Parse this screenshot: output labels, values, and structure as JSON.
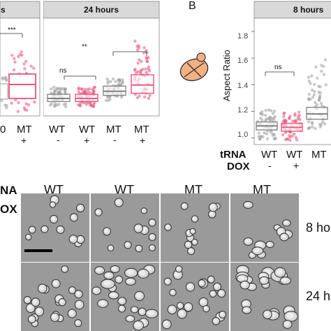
{
  "top_left": {
    "facet_left_strip_fragment": "s",
    "facet_right_strip": "24 hours",
    "sig_left": "***",
    "sig_right_1": "ns",
    "sig_right_2": "**",
    "x_left_row1": [
      "0",
      "MT"
    ],
    "x_left_row2": [
      "",
      "+"
    ],
    "x_right_row1": [
      "WT",
      "WT",
      "MT",
      "MT"
    ],
    "x_right_row2": [
      "-",
      "+",
      "-",
      "+"
    ]
  },
  "panel_b": {
    "letter": "B",
    "strip": "8 hours",
    "ylabel": "Aspect Ratio",
    "yticks": [
      "1.0",
      "1.2",
      "1.4",
      "1.6",
      "1.8"
    ],
    "sig": "ns",
    "row1_label": "tRNA",
    "row2_label": "DOX",
    "x_row1": [
      "WT",
      "WT",
      "MT"
    ],
    "x_row2": [
      "-",
      "+",
      ""
    ]
  },
  "micrographs": {
    "row_label_top_fragment": "NA",
    "row_label_bottom_fragment": "OX",
    "col_headers": [
      "WT",
      "WT",
      "MT",
      "MT"
    ],
    "col_subheaders": [
      "-",
      "+",
      "-",
      "+"
    ],
    "row_labels": [
      "8 ho",
      "24 h"
    ]
  },
  "chart_data": [
    {
      "type": "box",
      "title": "24 hours",
      "categories": [
        "WT -",
        "WT +",
        "MT -",
        "MT +"
      ],
      "median": [
        1.12,
        1.12,
        1.19,
        1.25
      ],
      "q1": [
        1.09,
        1.09,
        1.15,
        1.17
      ],
      "q3": [
        1.16,
        1.16,
        1.24,
        1.35
      ],
      "annotations": [
        "ns",
        "**"
      ],
      "colors": {
        "WT": "#9e9e9e",
        "MT_dox": "#e8547a"
      }
    },
    {
      "type": "box",
      "title": "8 hours",
      "ylabel": "Aspect Ratio",
      "categories": [
        "WT -",
        "WT +",
        "MT -"
      ],
      "median": [
        1.09,
        1.08,
        1.18
      ],
      "q1": [
        1.06,
        1.05,
        1.14
      ],
      "q3": [
        1.12,
        1.11,
        1.23
      ],
      "ylim": [
        0.95,
        1.9
      ],
      "annotations": [
        "ns"
      ]
    }
  ]
}
